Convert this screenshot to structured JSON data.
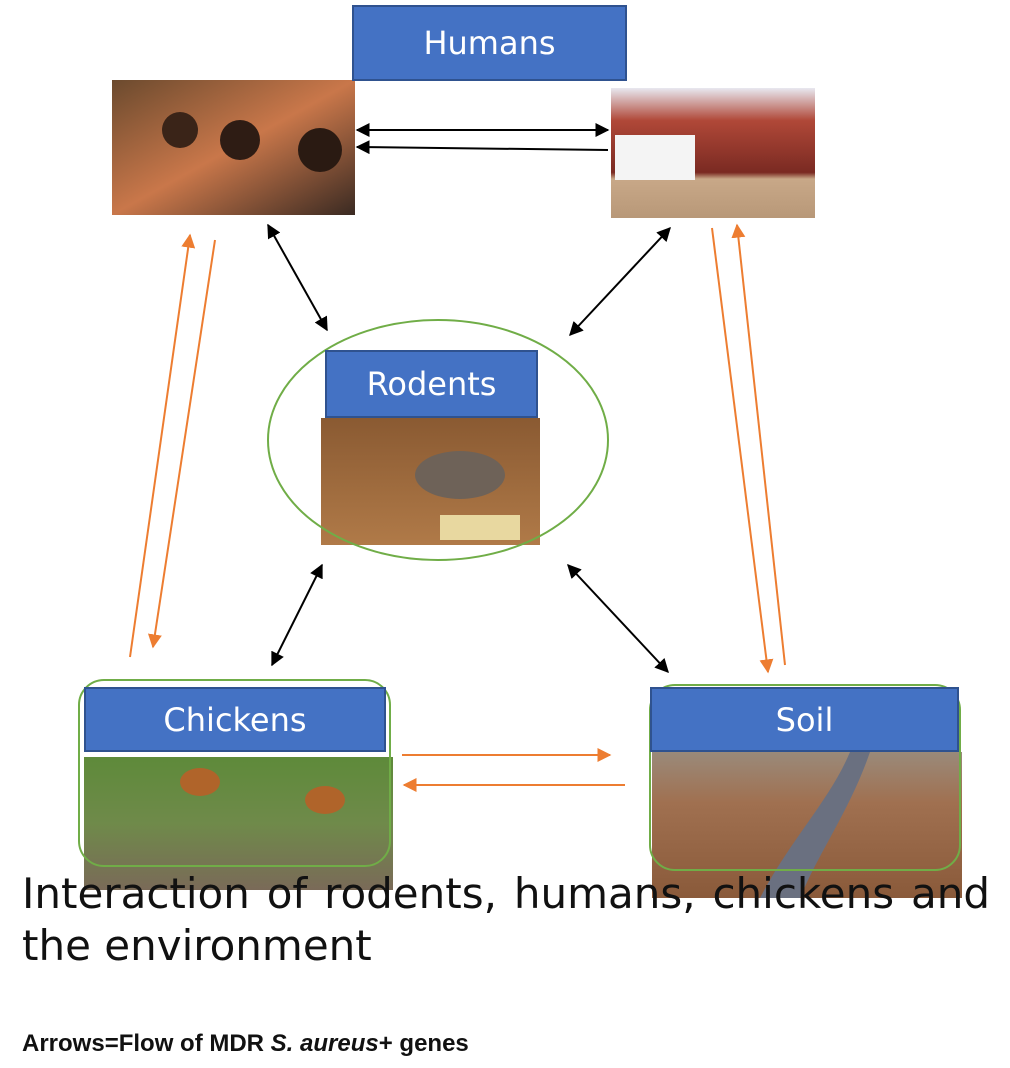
{
  "nodes": [
    {
      "label": "Humans"
    },
    {
      "label": "Rodents"
    },
    {
      "label": "Chickens"
    },
    {
      "label": "Soil"
    }
  ],
  "caption": "Interaction of rodents, humans, chickens and the environment",
  "footnote": {
    "prefix": "Arrows=Flow of MDR ",
    "species": "S. aureus",
    "suffix": "+ genes"
  }
}
